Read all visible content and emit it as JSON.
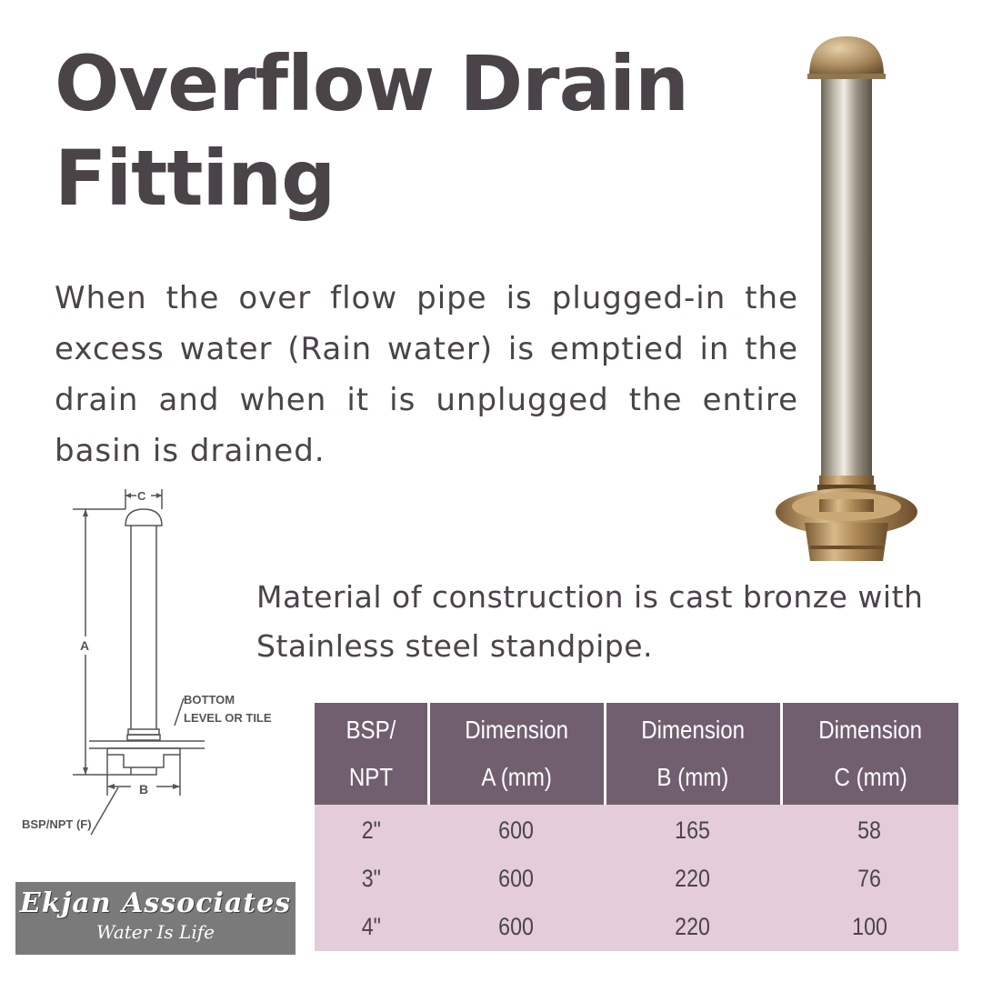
{
  "header": {
    "title": "Overflow Drain Fitting"
  },
  "intro": {
    "text": "When the over flow pipe is plugged-in the excess water (Rain water) is emptied in the drain and when it is unplugged the entire basin is drained."
  },
  "material": {
    "text": "Material of construction is cast bronze with Stainless steel standpipe."
  },
  "diagram": {
    "label_c": "C",
    "label_a": "A",
    "label_b": "B",
    "label_bottom_1": "BOTTOM",
    "label_bottom_2": "LEVEL OR TILE",
    "label_thread": "BSP/NPT (F)"
  },
  "table": {
    "headers": [
      {
        "line1": "BSP/",
        "line2": "NPT"
      },
      {
        "line1": "Dimension",
        "line2": "A (mm)"
      },
      {
        "line1": "Dimension",
        "line2": "B (mm)"
      },
      {
        "line1": "Dimension",
        "line2": "C (mm)"
      }
    ],
    "rows": [
      [
        "2\"",
        "600",
        "165",
        "58"
      ],
      [
        "3\"",
        "600",
        "220",
        "76"
      ],
      [
        "4\"",
        "600",
        "220",
        "100"
      ]
    ]
  },
  "logo": {
    "name": "Ekjan Associates",
    "tagline": "Water Is Life"
  },
  "colors": {
    "text": "#4a4448",
    "table_header": "#715f6f",
    "table_body": "#e4ccdb",
    "logo_bg": "#7a7a7a"
  }
}
